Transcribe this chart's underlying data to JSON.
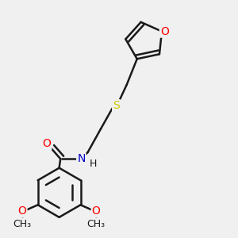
{
  "background_color": "#f0f0f0",
  "atom_colors": {
    "O": "#ff0000",
    "N": "#0000cc",
    "S": "#cccc00",
    "C": "#1a1a1a",
    "H": "#1a1a1a"
  },
  "bond_color": "#1a1a1a",
  "bond_width": 1.8,
  "font_size_hetero": 10,
  "font_size_label": 9
}
